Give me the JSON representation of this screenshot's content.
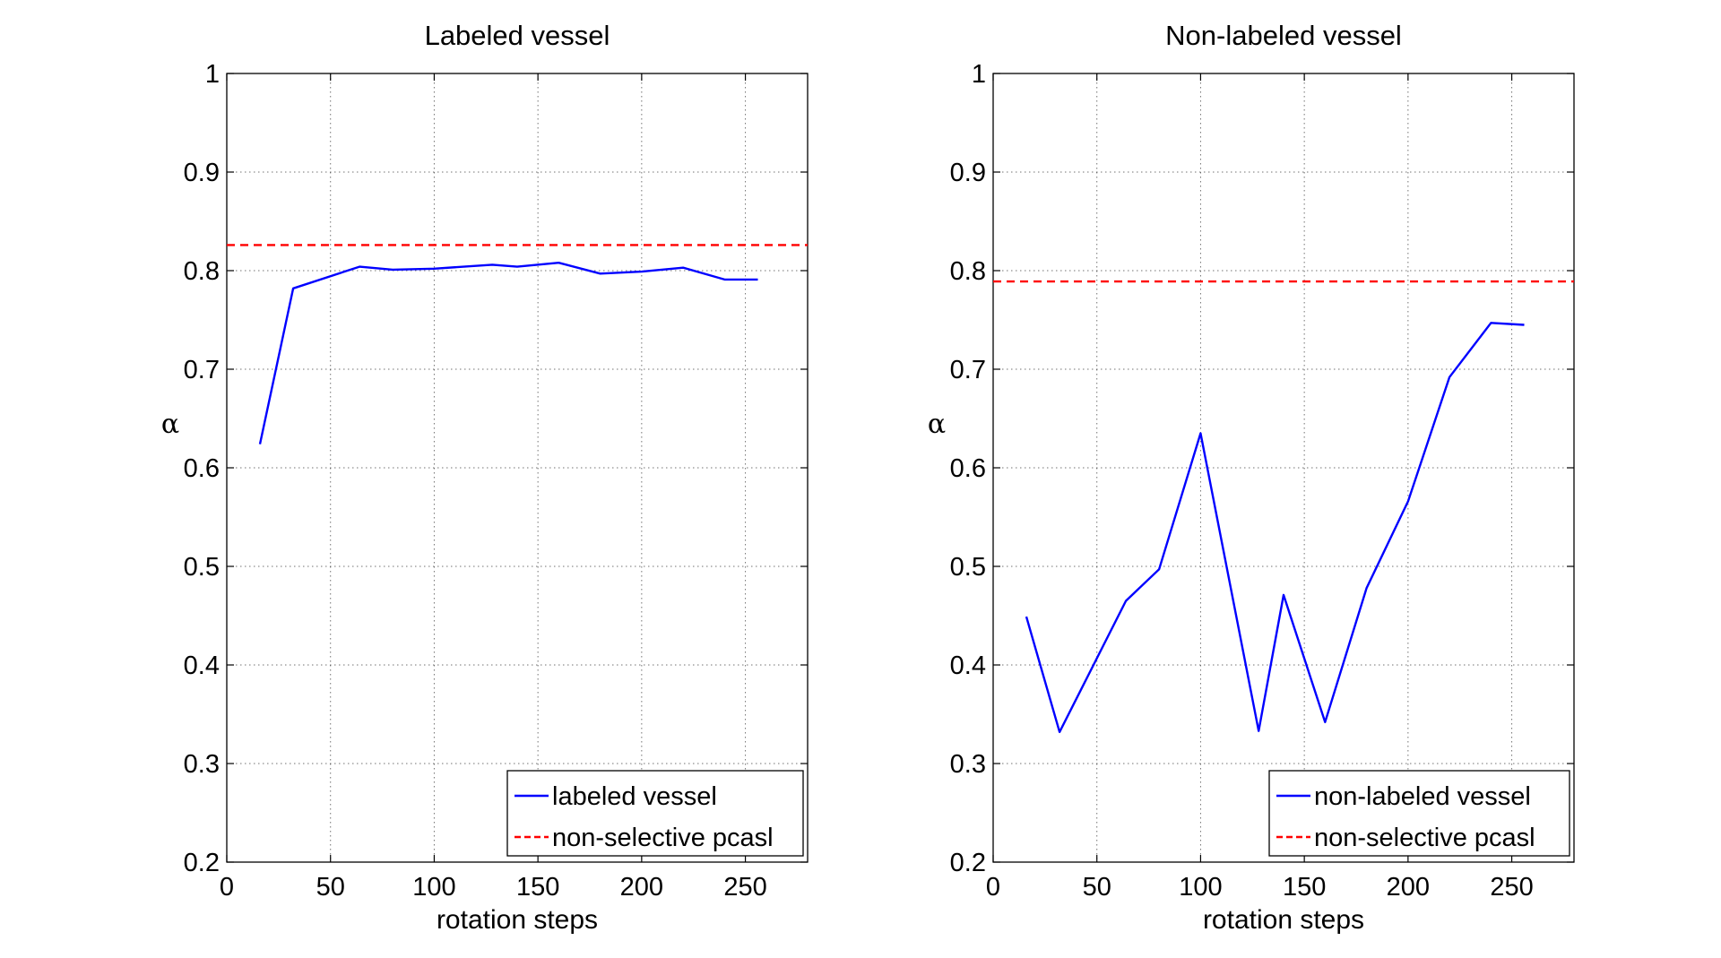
{
  "chart_data": [
    {
      "type": "line",
      "title": "Labeled vessel",
      "xlabel": "rotation steps",
      "ylabel": "α",
      "xlim": [
        0,
        280
      ],
      "ylim": [
        0.2,
        1
      ],
      "xticks": [
        0,
        50,
        100,
        150,
        200,
        250
      ],
      "yticks": [
        0.2,
        0.3,
        0.4,
        0.5,
        0.6,
        0.7,
        0.8,
        0.9,
        1
      ],
      "xtick_labels": [
        "0",
        "50",
        "100",
        "150",
        "200",
        "250"
      ],
      "ytick_labels": [
        "0.2",
        "0.3",
        "0.4",
        "0.5",
        "0.6",
        "0.7",
        "0.8",
        "0.9",
        "1"
      ],
      "grid": true,
      "legend_position": "bottom-right",
      "series": [
        {
          "name": "labeled vessel",
          "color": "#0000ff",
          "style": "solid",
          "x": [
            16,
            32,
            64,
            80,
            100,
            128,
            140,
            160,
            180,
            200,
            220,
            240,
            256
          ],
          "y": [
            0.624,
            0.782,
            0.804,
            0.801,
            0.802,
            0.806,
            0.804,
            0.808,
            0.797,
            0.799,
            0.803,
            0.791,
            0.791
          ]
        },
        {
          "name": "non-selective pcasl",
          "color": "#ff0000",
          "style": "dashed",
          "x": [
            0,
            280
          ],
          "y": [
            0.826,
            0.826
          ]
        }
      ]
    },
    {
      "type": "line",
      "title": "Non-labeled vessel",
      "xlabel": "rotation steps",
      "ylabel": "α",
      "xlim": [
        0,
        280
      ],
      "ylim": [
        0.2,
        1
      ],
      "xticks": [
        0,
        50,
        100,
        150,
        200,
        250
      ],
      "yticks": [
        0.2,
        0.3,
        0.4,
        0.5,
        0.6,
        0.7,
        0.8,
        0.9,
        1
      ],
      "xtick_labels": [
        "0",
        "50",
        "100",
        "150",
        "200",
        "250"
      ],
      "ytick_labels": [
        "0.2",
        "0.3",
        "0.4",
        "0.5",
        "0.6",
        "0.7",
        "0.8",
        "0.9",
        "1"
      ],
      "grid": true,
      "legend_position": "bottom-right",
      "series": [
        {
          "name": "non-labeled vessel",
          "color": "#0000ff",
          "style": "solid",
          "x": [
            16,
            32,
            64,
            80,
            100,
            128,
            140,
            160,
            180,
            200,
            220,
            240,
            256
          ],
          "y": [
            0.449,
            0.332,
            0.465,
            0.497,
            0.635,
            0.333,
            0.471,
            0.342,
            0.478,
            0.566,
            0.692,
            0.747,
            0.745
          ]
        },
        {
          "name": "non-selective pcasl",
          "color": "#ff0000",
          "style": "dashed",
          "x": [
            0,
            280
          ],
          "y": [
            0.789,
            0.789
          ]
        }
      ]
    }
  ]
}
